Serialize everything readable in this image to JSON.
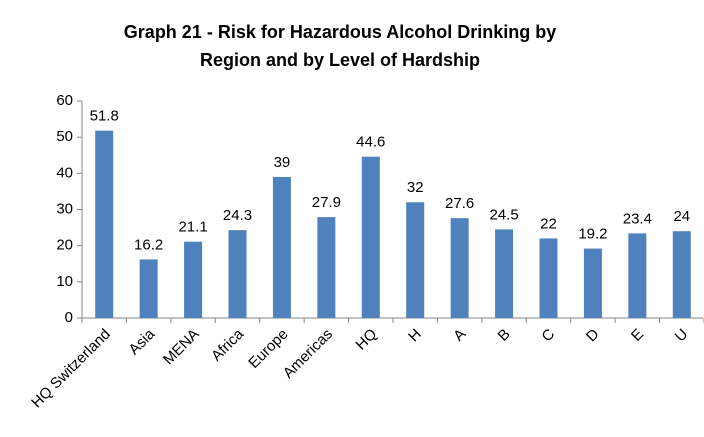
{
  "chart_data": {
    "type": "bar",
    "title": [
      "Graph 21 - Risk for Hazardous Alcohol Drinking by",
      "Region and by Level of Hardship"
    ],
    "categories": [
      "HQ Switzerland",
      "Asia",
      "MENA",
      "Africa",
      "Europe",
      "Americas",
      "HQ",
      "H",
      "A",
      "B",
      "C",
      "D",
      "E",
      "U"
    ],
    "values": [
      51.8,
      16.2,
      21.1,
      24.3,
      39,
      27.9,
      44.6,
      32,
      27.6,
      24.5,
      22,
      19.2,
      23.4,
      24
    ],
    "color": "#4f81bd",
    "ylim": [
      0,
      60
    ],
    "yticks": [
      0,
      10,
      20,
      30,
      40,
      50,
      60
    ],
    "grid": false
  }
}
